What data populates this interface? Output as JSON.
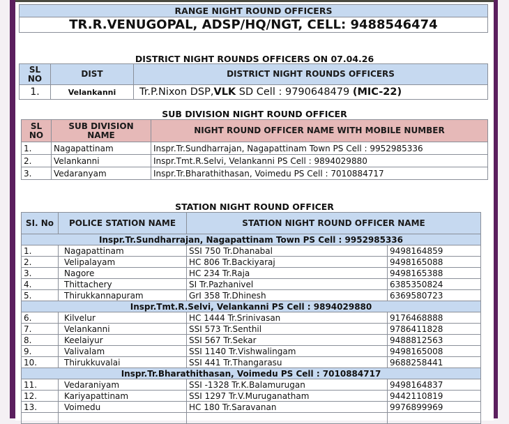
{
  "range": {
    "header": "RANGE NIGHT ROUND OFFICERS",
    "officer": "TR.R.VENUGOPAL, ADSP/HQ/NGT, CELL: 9488546474"
  },
  "district": {
    "title": "DISTRICT NIGHT ROUNDS OFFICERS ON 07.04.26",
    "headers": [
      "SL NO",
      "DIST",
      "DISTRICT NIGHT ROUNDS OFFICERS"
    ],
    "row": {
      "sl": "1.",
      "dist": "Velankanni",
      "officer_a": "Tr.P.Nixon DSP,",
      "officer_b": "VLK",
      "officer_c": " SD Cell : 9790648479 ",
      "officer_d": "(MIC-22)"
    }
  },
  "subdivision": {
    "title": "SUB DIVISION NIGHT ROUND OFFICER",
    "headers": [
      "SL NO",
      "SUB DIVISION NAME",
      "NIGHT ROUND OFFICER NAME WITH MOBILE NUMBER"
    ],
    "rows": [
      {
        "sl": "1.",
        "name": "Nagapattinam",
        "officer": "Inspr.Tr.Sundharrajan, Nagapattinam Town PS Cell : 9952985336"
      },
      {
        "sl": "2.",
        "name": "Velankanni",
        "officer": "Inspr.Tmt.R.Selvi, Velankanni PS Cell : 9894029880"
      },
      {
        "sl": "3.",
        "name": "Vedaranyam",
        "officer": "Inspr.Tr.Bharathithasan, Voimedu PS Cell : 7010884717"
      }
    ]
  },
  "station": {
    "title": "STATION NIGHT ROUND OFFICER",
    "headers": [
      "SI. No",
      "POLICE STATION NAME",
      "STATION NIGHT ROUND OFFICER NAME"
    ],
    "groups": [
      {
        "label": "Inspr.Tr.Sundharrajan, Nagapattinam Town PS Cell : 9952985336",
        "rows": [
          {
            "sl": "1.",
            "ps": "Nagapattinam",
            "officer": "SSI 750 Tr.Dhanabal",
            "mobile": "9498164859"
          },
          {
            "sl": "2.",
            "ps": "Velipalayam",
            "officer": "HC 806 Tr.Backiyaraj",
            "mobile": "9498165088"
          },
          {
            "sl": "3.",
            "ps": "Nagore",
            "officer": "HC 234 Tr.Raja",
            "mobile": "9498165388"
          },
          {
            "sl": "4.",
            "ps": "Thittachery",
            "officer": "SI Tr.Pazhanivel",
            "mobile": "6385350824"
          },
          {
            "sl": "5.",
            "ps": "Thirukkannapuram",
            "officer": "GrI 358 Tr.Dhinesh",
            "mobile": "6369580723"
          }
        ]
      },
      {
        "label": "Inspr.Tmt.R.Selvi, Velankanni PS Cell : 9894029880",
        "rows": [
          {
            "sl": "6.",
            "ps": "Kilvelur",
            "officer": "HC 1444 Tr.Srinivasan",
            "mobile": "9176468888"
          },
          {
            "sl": "7.",
            "ps": "Velankanni",
            "officer": "SSI 573 Tr.Senthil",
            "mobile": "9786411828"
          },
          {
            "sl": "8.",
            "ps": "Keelaiyur",
            "officer": "SSI 567 Tr.Sekar",
            "mobile": "9488812563"
          },
          {
            "sl": "9.",
            "ps": "Valivalam",
            "officer": "SSI 1140 Tr.Vishwalingam",
            "mobile": "9498165008"
          },
          {
            "sl": "10.",
            "ps": "Thirukkuvalai",
            "officer": "SSI 441 Tr.Thangarasu",
            "mobile": "9688258441"
          }
        ]
      },
      {
        "label": "Inspr.Tr.Bharathithasan, Voimedu PS Cell : 7010884717",
        "rows": [
          {
            "sl": "11.",
            "ps": "Vedaraniyam",
            "officer": "SSI -1328 Tr.K.Balamurugan",
            "mobile": "9498164837"
          },
          {
            "sl": "12.",
            "ps": "Kariyapattinam",
            "officer": "SSI 1297 Tr.V.Muruganatham",
            "mobile": "9442110819"
          },
          {
            "sl": "13.",
            "ps": "Voimedu",
            "officer": "HC 180 Tr.Saravanan",
            "mobile": "9976899969"
          }
        ]
      }
    ]
  }
}
